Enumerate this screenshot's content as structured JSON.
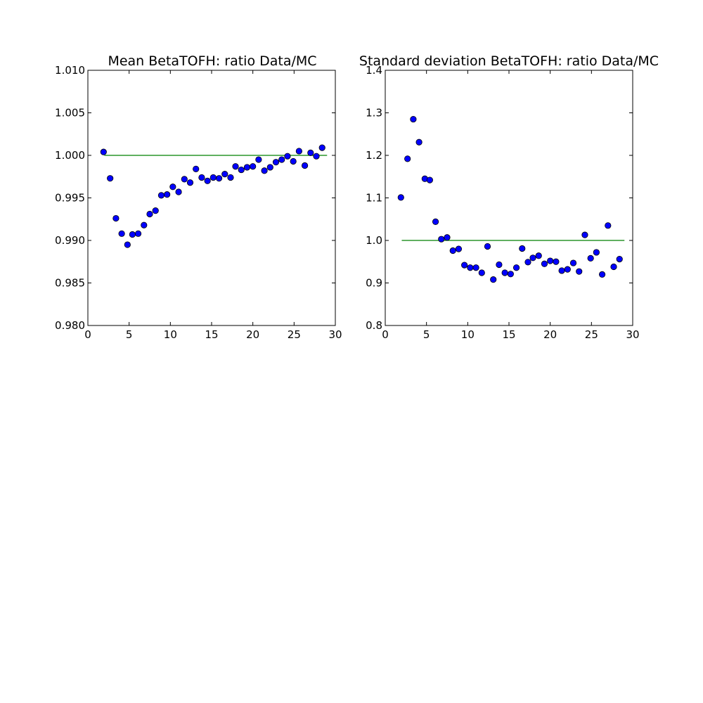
{
  "colors": {
    "background": "#ffffff",
    "marker_fill": "#0000ff",
    "marker_edge": "#000000",
    "reference_line": "#008000",
    "axes": "#000000"
  },
  "chart_data": [
    {
      "type": "scatter",
      "title": "Mean BetaTOFH: ratio Data/MC",
      "xlabel": "",
      "ylabel": "",
      "xlim": [
        0,
        30
      ],
      "ylim": [
        0.98,
        1.01
      ],
      "grid": false,
      "x_ticks": [
        0,
        5,
        10,
        15,
        20,
        25,
        30
      ],
      "x_tick_labels": [
        "0",
        "5",
        "10",
        "15",
        "20",
        "25",
        "30"
      ],
      "y_ticks": [
        0.98,
        0.985,
        0.99,
        0.995,
        1.0,
        1.005,
        1.01
      ],
      "y_tick_labels": [
        "0.980",
        "0.985",
        "0.990",
        "0.995",
        "1.000",
        "1.005",
        "1.010"
      ],
      "reference_line": {
        "x": [
          2,
          29
        ],
        "y": 1.0
      },
      "series": [
        {
          "x": [
            1.9,
            2.7,
            3.4,
            4.1,
            4.8,
            5.4,
            6.1,
            6.8,
            7.5,
            8.2,
            8.9,
            9.6,
            10.3,
            11.0,
            11.7,
            12.4,
            13.1,
            13.8,
            14.5,
            15.2,
            15.9,
            16.6,
            17.3,
            17.9,
            18.6,
            19.3,
            20.0,
            20.7,
            21.4,
            22.1,
            22.8,
            23.5,
            24.2,
            24.9,
            25.6,
            26.3,
            27.0,
            27.7,
            28.4
          ],
          "y": [
            1.0004,
            0.9973,
            0.9926,
            0.9908,
            0.9895,
            0.9907,
            0.9908,
            0.9918,
            0.9931,
            0.9935,
            0.9953,
            0.9954,
            0.9963,
            0.9957,
            0.9972,
            0.9968,
            0.9984,
            0.9974,
            0.997,
            0.9974,
            0.9973,
            0.9978,
            0.9974,
            0.9987,
            0.9983,
            0.9986,
            0.9987,
            0.9995,
            0.9982,
            0.9986,
            0.9992,
            0.9995,
            0.9999,
            0.9993,
            1.0005,
            0.9988,
            1.0003,
            0.9999,
            1.0009
          ]
        }
      ]
    },
    {
      "type": "scatter",
      "title": "Standard deviation BetaTOFH: ratio Data/MC",
      "xlabel": "",
      "ylabel": "",
      "xlim": [
        0,
        30
      ],
      "ylim": [
        0.8,
        1.4
      ],
      "grid": false,
      "x_ticks": [
        0,
        5,
        10,
        15,
        20,
        25,
        30
      ],
      "x_tick_labels": [
        "0",
        "5",
        "10",
        "15",
        "20",
        "25",
        "30"
      ],
      "y_ticks": [
        0.8,
        0.9,
        1.0,
        1.1,
        1.2,
        1.3,
        1.4
      ],
      "y_tick_labels": [
        "0.8",
        "0.9",
        "1.0",
        "1.1",
        "1.2",
        "1.3",
        "1.4"
      ],
      "reference_line": {
        "x": [
          2,
          29
        ],
        "y": 1.0
      },
      "series": [
        {
          "x": [
            1.9,
            2.7,
            3.4,
            4.1,
            4.8,
            5.4,
            6.1,
            6.8,
            7.5,
            8.2,
            8.9,
            9.6,
            10.3,
            11.0,
            11.7,
            12.4,
            13.1,
            13.8,
            14.5,
            15.2,
            15.9,
            16.6,
            17.3,
            17.9,
            18.6,
            19.3,
            20.0,
            20.7,
            21.4,
            22.1,
            22.8,
            23.5,
            24.2,
            24.9,
            25.6,
            26.3,
            27.0,
            27.7,
            28.4
          ],
          "y": [
            1.101,
            1.192,
            1.285,
            1.231,
            1.145,
            1.142,
            1.044,
            1.003,
            1.007,
            0.976,
            0.98,
            0.942,
            0.936,
            0.936,
            0.924,
            0.986,
            0.908,
            0.943,
            0.924,
            0.921,
            0.936,
            0.981,
            0.949,
            0.959,
            0.964,
            0.945,
            0.952,
            0.95,
            0.929,
            0.932,
            0.947,
            0.927,
            1.013,
            0.958,
            0.972,
            0.92,
            1.035,
            0.938,
            0.956
          ]
        }
      ]
    }
  ]
}
